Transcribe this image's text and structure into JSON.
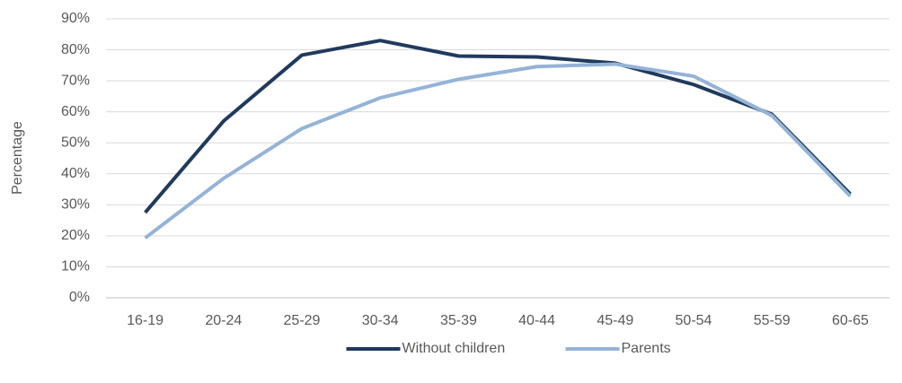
{
  "chart_data": {
    "type": "line",
    "y_label": "Percentage",
    "categories": [
      "16-19",
      "20-24",
      "25-29",
      "30-34",
      "35-39",
      "40-44",
      "45-49",
      "50-54",
      "55-59",
      "60-65"
    ],
    "series": [
      {
        "name": "Without children",
        "color": "#203a5c",
        "values": [
          27.5,
          57,
          78.3,
          83,
          78,
          77.7,
          75.7,
          68.8,
          59.2,
          33.5
        ]
      },
      {
        "name": "Parents",
        "color": "#95b3d7",
        "values": [
          19.3,
          38.5,
          54.6,
          64.5,
          70.5,
          74.6,
          75.4,
          71.5,
          58.8,
          32.8
        ]
      }
    ],
    "ylim": [
      0,
      90
    ],
    "yticks": [
      {
        "value": 0,
        "label": "0%"
      },
      {
        "value": 10,
        "label": "10%"
      },
      {
        "value": 20,
        "label": "20%"
      },
      {
        "value": 30,
        "label": "30%"
      },
      {
        "value": 40,
        "label": "40%"
      },
      {
        "value": 50,
        "label": "50%"
      },
      {
        "value": 60,
        "label": "60%"
      },
      {
        "value": 70,
        "label": "70%"
      },
      {
        "value": 80,
        "label": "80%"
      },
      {
        "value": 90,
        "label": "90%"
      }
    ],
    "grid": true,
    "legend": "bottom"
  }
}
